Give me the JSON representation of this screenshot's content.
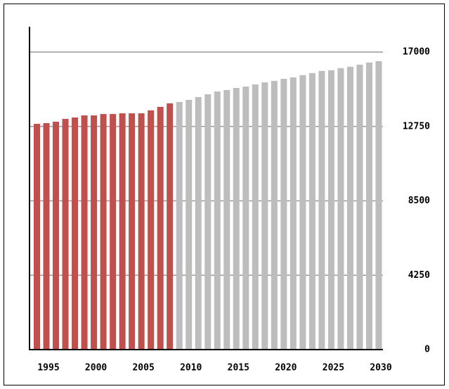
{
  "chart_data": {
    "type": "bar",
    "categories": [
      null,
      "1995",
      null,
      null,
      null,
      null,
      "2000",
      null,
      null,
      null,
      null,
      "2005",
      null,
      null,
      null,
      null,
      "2010",
      null,
      null,
      null,
      null,
      "2015",
      null,
      null,
      null,
      null,
      "2020",
      null,
      null,
      null,
      null,
      "2025",
      null,
      null,
      null,
      null,
      "2030"
    ],
    "series": [
      {
        "color": "#c0504d",
        "values": [
          12900,
          12940,
          13020,
          13180,
          13260,
          13380,
          13380,
          13460,
          13460,
          13500,
          13500,
          13500,
          13670,
          13870,
          14070,
          null,
          null,
          null,
          null,
          null,
          null,
          null,
          null,
          null,
          null,
          null,
          null,
          null,
          null,
          null,
          null,
          null,
          null,
          null,
          null,
          null,
          null
        ]
      },
      {
        "color": "#bdbdbd",
        "values": [
          null,
          null,
          null,
          null,
          null,
          null,
          null,
          null,
          null,
          null,
          null,
          null,
          null,
          null,
          null,
          14150,
          14270,
          14430,
          14590,
          14750,
          14830,
          14950,
          15030,
          15150,
          15270,
          15350,
          15470,
          15550,
          15680,
          15800,
          15920,
          15960,
          16080,
          16160,
          16280,
          16400,
          16480
        ]
      }
    ],
    "ylim": [
      0,
      17000
    ],
    "yticks": [
      0,
      4250,
      8500,
      12750,
      17000
    ],
    "grid": true
  }
}
